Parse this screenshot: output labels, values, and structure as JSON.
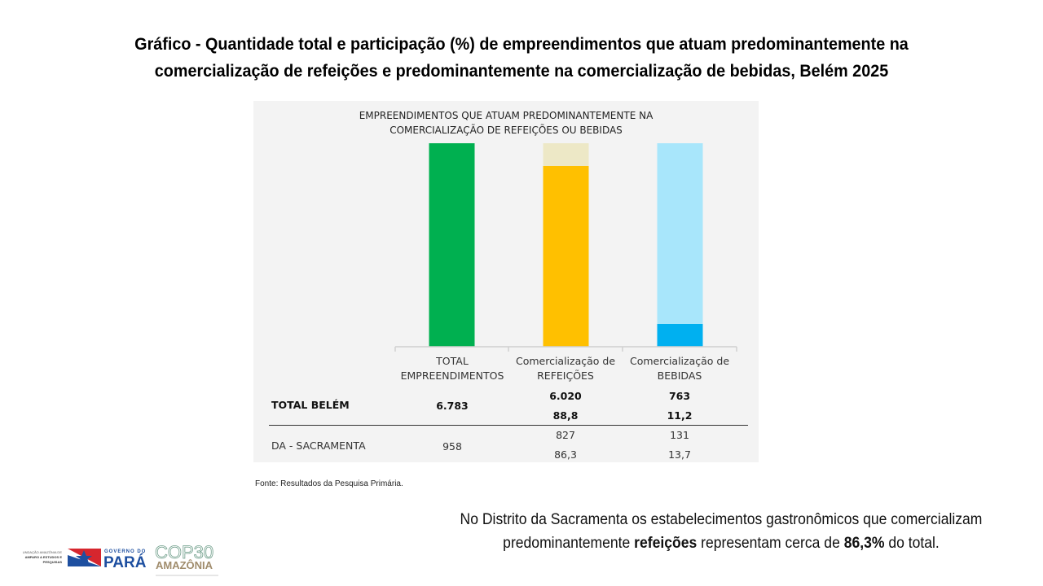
{
  "page": {
    "title": "Gráfico - Quantidade total e participação (%) de empreendimentos que atuam predominantemente na comercialização de refeições e predominantemente na comercialização de bebidas, Belém 2025",
    "source": "Fonte: Resultados da Pesquisa Primária.",
    "note": {
      "part1": "No Distrito da Sacramenta os estabelecimentos gastronômicos que comercializam predominantemente ",
      "bold1": "refeições",
      "part2": " representam cerca de ",
      "bold2": "86,3%",
      "part3": " do total."
    },
    "logos": {
      "fapespa": "FUNDAÇÃO AMAZÔNIA DE AMPARO A ESTUDOS E PESQUISAS",
      "governo": "GOVERNO DO",
      "para": "PARÁ",
      "cop": "COP30",
      "amazonia": "AMAZÔNIA"
    }
  },
  "chart_data": {
    "type": "bar",
    "stacked": "percent",
    "title": "EMPREENDIMENTOS QUE ATUAM PREDOMINANTEMENTE NA COMERCIALIZAÇÃO DE REFEIÇÕES OU BEBIDAS",
    "title_lines": [
      "EMPREENDIMENTOS QUE ATUAM PREDOMINANTEMENTE NA",
      "COMERCIALIZAÇÃO DE REFEIÇÕES OU BEBIDAS"
    ],
    "categories": [
      "TOTAL EMPREENDIMENTOS",
      "Comercialização de REFEIÇÕES",
      "Comercialização de BEBIDAS"
    ],
    "category_lines": [
      [
        "TOTAL",
        "EMPREENDIMENTOS"
      ],
      [
        "Comercialização de",
        "REFEIÇÕES"
      ],
      [
        "Comercialização de",
        "BEBIDAS"
      ]
    ],
    "bars": [
      {
        "category": "TOTAL EMPREENDIMENTOS",
        "share": 100,
        "color": "#00b050",
        "bg_color": "#00b050"
      },
      {
        "category": "Comercialização de REFEIÇÕES",
        "share": 88.8,
        "color": "#ffc000",
        "bg_color": "#ede8c6"
      },
      {
        "category": "Comercialização de BEBIDAS",
        "share": 11.2,
        "color": "#00b0f0",
        "bg_color": "#a8e6fb"
      }
    ],
    "ylim": [
      0,
      100
    ],
    "table": {
      "rows": [
        {
          "label": "TOTAL BELÉM",
          "bold": true,
          "total": "6.783",
          "refeicoes": "6.020",
          "refeicoes_pct": "88,8",
          "bebidas": "763",
          "bebidas_pct": "11,2"
        },
        {
          "label": "DA - SACRAMENTA",
          "bold": false,
          "total": "958",
          "refeicoes": "827",
          "refeicoes_pct": "86,3",
          "bebidas": "131",
          "bebidas_pct": "13,7"
        }
      ]
    }
  }
}
